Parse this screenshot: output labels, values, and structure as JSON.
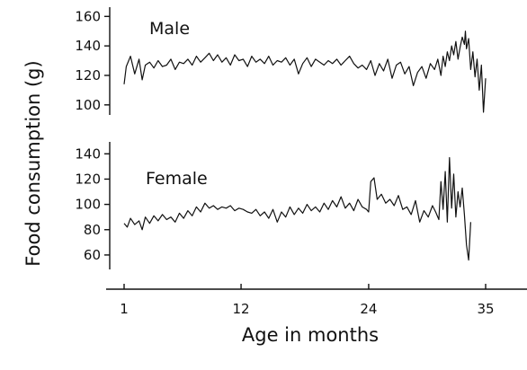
{
  "chart_data": [
    {
      "type": "line",
      "panel": "top",
      "label": "Male",
      "ylabel": "Food consumption (g)",
      "xlabel": "Age in months",
      "yticks": [
        100,
        120,
        140,
        160
      ],
      "ylim": [
        95,
        162
      ],
      "xlim": [
        1,
        37
      ],
      "series": [
        {
          "name": "Male",
          "x": [
            1.0,
            1.2,
            1.6,
            2.0,
            2.4,
            2.7,
            3.0,
            3.4,
            3.8,
            4.2,
            4.6,
            5.0,
            5.4,
            5.8,
            6.2,
            6.6,
            7.0,
            7.4,
            7.8,
            8.2,
            8.6,
            9.0,
            9.4,
            9.8,
            10.2,
            10.6,
            11.0,
            11.4,
            11.8,
            12.2,
            12.6,
            13.0,
            13.4,
            13.8,
            14.2,
            14.6,
            15.0,
            15.4,
            15.8,
            16.2,
            16.6,
            17.0,
            17.4,
            17.8,
            18.2,
            18.6,
            19.0,
            19.4,
            19.8,
            20.2,
            20.6,
            21.0,
            21.4,
            21.8,
            22.2,
            22.6,
            23.0,
            23.4,
            23.8,
            24.2,
            24.6,
            25.0,
            25.4,
            25.8,
            26.2,
            26.6,
            27.0,
            27.4,
            27.8,
            28.2,
            28.6,
            29.0,
            29.4,
            29.8,
            30.2,
            30.5,
            30.8,
            31.0,
            31.2,
            31.4,
            31.6,
            31.8,
            32.0,
            32.2,
            32.4,
            32.6,
            32.8,
            33.0,
            33.1,
            33.2,
            33.4,
            33.6,
            33.8,
            34.0,
            34.2,
            34.4,
            34.6,
            34.8,
            35.0
          ],
          "values": [
            114,
            126,
            133,
            121,
            131,
            117,
            127,
            129,
            125,
            130,
            126,
            127,
            131,
            124,
            129,
            128,
            131,
            127,
            133,
            129,
            132,
            135,
            130,
            134,
            129,
            132,
            127,
            134,
            130,
            131,
            126,
            133,
            129,
            131,
            128,
            133,
            127,
            130,
            129,
            132,
            127,
            131,
            121,
            128,
            132,
            126,
            131,
            129,
            127,
            130,
            128,
            131,
            127,
            130,
            133,
            128,
            125,
            127,
            124,
            130,
            120,
            128,
            123,
            131,
            118,
            127,
            129,
            121,
            126,
            113,
            122,
            126,
            118,
            128,
            124,
            131,
            120,
            133,
            126,
            136,
            130,
            140,
            134,
            143,
            131,
            139,
            146,
            141,
            150,
            138,
            145,
            124,
            136,
            119,
            131,
            110,
            127,
            95,
            118
          ]
        }
      ]
    },
    {
      "type": "line",
      "panel": "bottom",
      "label": "Female",
      "ylabel": "Food consumption (g)",
      "xlabel": "Age in months",
      "yticks": [
        60,
        80,
        100,
        120,
        140
      ],
      "ylim": [
        50,
        148
      ],
      "xlim": [
        1,
        37
      ],
      "xticks": [
        1,
        12,
        24,
        35
      ],
      "series": [
        {
          "name": "Female",
          "x": [
            1.0,
            1.3,
            1.6,
            2.0,
            2.4,
            2.7,
            3.0,
            3.4,
            3.8,
            4.2,
            4.6,
            5.0,
            5.4,
            5.8,
            6.2,
            6.6,
            7.0,
            7.4,
            7.8,
            8.2,
            8.6,
            9.0,
            9.4,
            9.8,
            10.2,
            10.6,
            11.0,
            11.4,
            11.8,
            12.2,
            12.6,
            13.0,
            13.4,
            13.8,
            14.2,
            14.6,
            15.0,
            15.4,
            15.8,
            16.2,
            16.6,
            17.0,
            17.4,
            17.8,
            18.2,
            18.6,
            19.0,
            19.4,
            19.8,
            20.2,
            20.6,
            21.0,
            21.4,
            21.8,
            22.2,
            22.6,
            23.0,
            23.4,
            23.8,
            24.0,
            24.2,
            24.5,
            24.8,
            25.2,
            25.6,
            26.0,
            26.4,
            26.8,
            27.2,
            27.6,
            28.0,
            28.4,
            28.8,
            29.2,
            29.6,
            30.0,
            30.3,
            30.6,
            30.8,
            31.0,
            31.2,
            31.4,
            31.6,
            31.8,
            32.0,
            32.2,
            32.4,
            32.6,
            32.8,
            33.0,
            33.2,
            33.4,
            33.6
          ],
          "values": [
            85,
            82,
            89,
            84,
            87,
            80,
            90,
            85,
            91,
            87,
            92,
            88,
            90,
            86,
            93,
            89,
            95,
            91,
            98,
            94,
            101,
            97,
            99,
            96,
            98,
            97,
            99,
            95,
            97,
            96,
            94,
            93,
            96,
            91,
            94,
            89,
            96,
            86,
            94,
            90,
            98,
            92,
            97,
            93,
            100,
            95,
            98,
            94,
            101,
            96,
            103,
            98,
            106,
            97,
            101,
            95,
            104,
            98,
            96,
            94,
            118,
            121,
            104,
            108,
            101,
            104,
            99,
            107,
            96,
            98,
            92,
            103,
            86,
            95,
            90,
            99,
            94,
            88,
            118,
            96,
            126,
            86,
            137,
            97,
            124,
            90,
            110,
            98,
            113,
            92,
            68,
            56,
            86
          ]
        }
      ]
    }
  ]
}
